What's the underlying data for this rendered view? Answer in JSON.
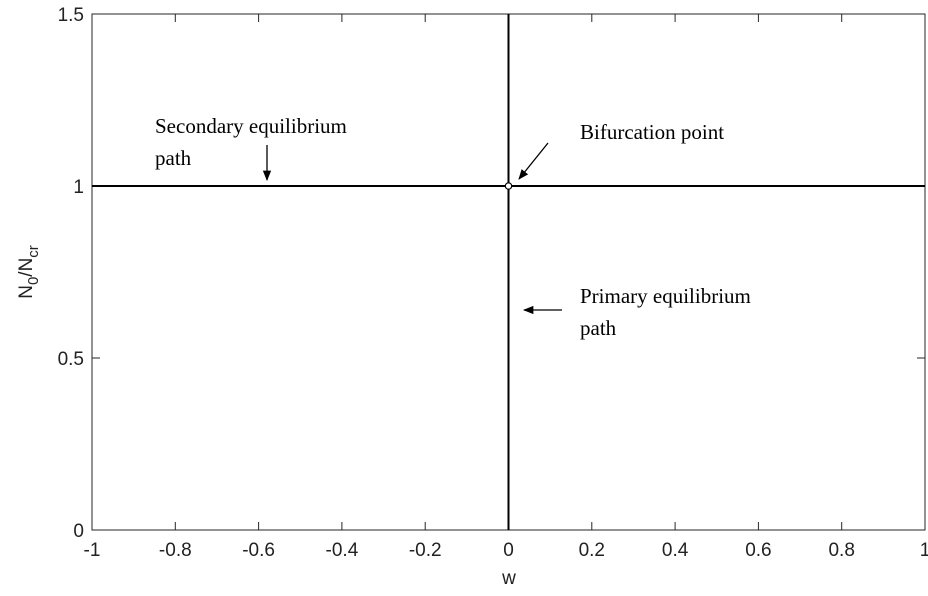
{
  "chart_data": {
    "type": "line",
    "xlabel": "w",
    "ylabel": [
      "N",
      "0",
      "/N",
      "cr"
    ],
    "xlim": [
      -1,
      1
    ],
    "ylim": [
      0,
      1.5
    ],
    "xticks": [
      -1,
      -0.8,
      -0.6,
      -0.4,
      -0.2,
      0,
      0.2,
      0.4,
      0.6,
      0.8,
      1
    ],
    "yticks": [
      0,
      0.5,
      1,
      1.5
    ],
    "series": [
      {
        "color": "#000000",
        "x": [
          0,
          0
        ],
        "values": [
          0,
          1.5
        ]
      },
      {
        "color": "#000000",
        "x": [
          -1,
          1
        ],
        "values": [
          1,
          1
        ]
      }
    ],
    "points": {
      "x": [
        0
      ],
      "values": [
        1
      ],
      "color": "#ffffff"
    },
    "annotations": [
      {
        "lines": [
          "Secondary equilibrium",
          "path"
        ]
      },
      {
        "lines": [
          "Bifurcation point"
        ]
      },
      {
        "lines": [
          "Primary equilibrium",
          "path"
        ]
      }
    ]
  }
}
